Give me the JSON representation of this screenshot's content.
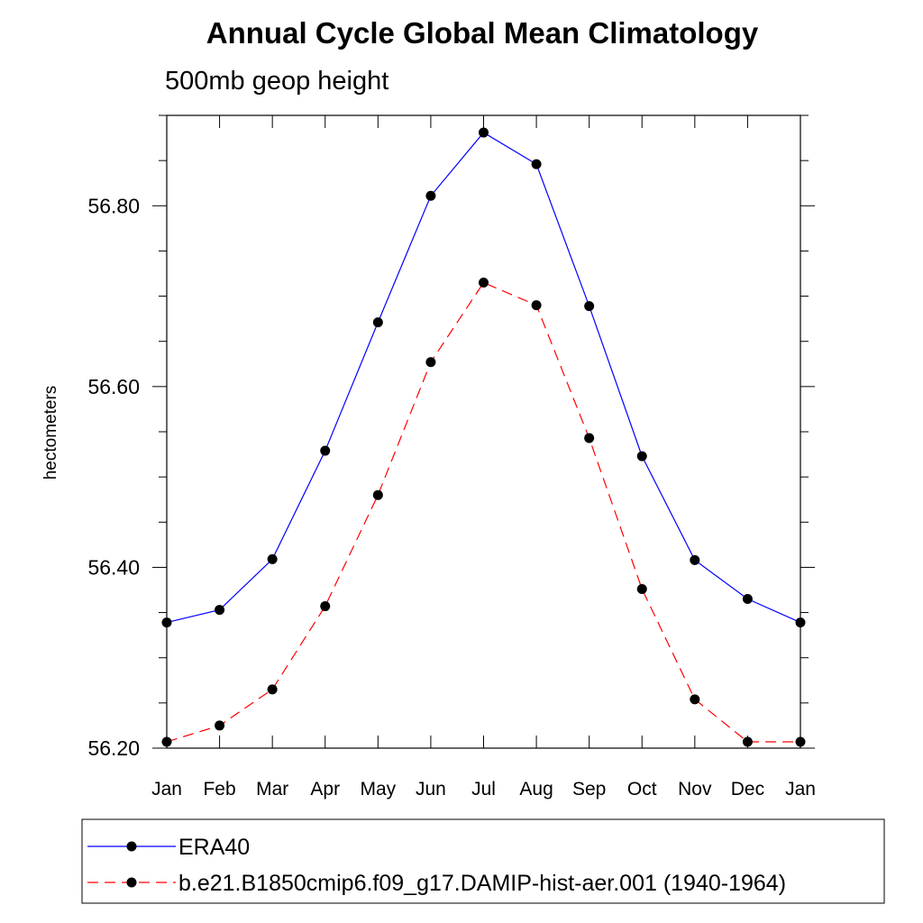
{
  "chart_data": {
    "type": "line",
    "title": "Annual Cycle Global Mean Climatology",
    "subtitle": "500mb geop height",
    "xlabel": "",
    "ylabel": "hectometers",
    "categories": [
      "Jan",
      "Feb",
      "Mar",
      "Apr",
      "May",
      "Jun",
      "Jul",
      "Aug",
      "Sep",
      "Oct",
      "Nov",
      "Dec",
      "Jan"
    ],
    "ylim": [
      56.2,
      56.9
    ],
    "yticks": [
      56.2,
      56.4,
      56.6,
      56.8
    ],
    "ytick_labels": [
      "56.20",
      "56.40",
      "56.60",
      "56.80"
    ],
    "grid": false,
    "legend_position": "bottom",
    "series": [
      {
        "name": "ERA40",
        "color": "#0000ff",
        "dash": "solid",
        "marker": "filled-circle",
        "values": [
          56.339,
          56.353,
          56.409,
          56.529,
          56.671,
          56.811,
          56.881,
          56.846,
          56.689,
          56.523,
          56.408,
          56.365,
          56.339
        ]
      },
      {
        "name": "b.e21.B1850cmip6.f09_g17.DAMIP-hist-aer.001 (1940-1964)",
        "color": "#ff0000",
        "dash": "dashed",
        "marker": "filled-circle",
        "values": [
          56.207,
          56.225,
          56.265,
          56.357,
          56.48,
          56.627,
          56.715,
          56.69,
          56.543,
          56.376,
          56.254,
          56.207,
          56.207
        ]
      }
    ]
  }
}
